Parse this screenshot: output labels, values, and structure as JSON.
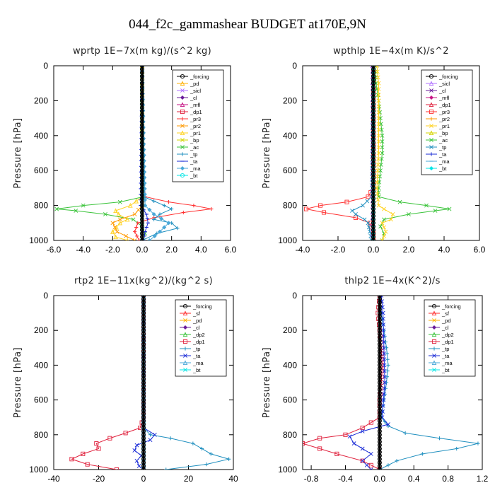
{
  "title": "044_f2c_gammashear  BUDGET at170E,9N",
  "colors": {
    "_forcing": "#000000",
    "_sicl": "#b070ff",
    "_cl": "#6a1b9a",
    "_mfl": "#c71585",
    "_dp1": "#e0203c",
    "_pr3": "#ff3030",
    "_pr2": "#ff9900",
    "_pr1": "#ffd21f",
    "_bp": "#d4d400",
    "_ac": "#39c339",
    "_tp": "#1f8fbf",
    "_ta": "#1a2bd6",
    "_ma": "#4aa8d8",
    "_bt": "#00e5e5",
    "_sf": "#ff2a2a",
    "_pd": "#ffb000",
    "_dp2": "#39c339"
  },
  "chart_data": [
    {
      "type": "line",
      "title": "wprtp   1E−7x(m kg)/(s^2 kg)",
      "ylabel": "Pressure [hPa]",
      "xlim": [
        -6,
        6
      ],
      "ylim": [
        1000,
        0
      ],
      "xticks": [
        "-6.0",
        "-4.0",
        "-2.0",
        "0.0",
        "2.0",
        "4.0",
        "6.0"
      ],
      "yticks": [
        "0",
        "200",
        "400",
        "600",
        "800",
        "1000"
      ],
      "legend": [
        "_forcing",
        "_pd",
        "_sicl",
        "_cl",
        "_mfl",
        "_dp1",
        "_pr3",
        "_pr2",
        "_pr1",
        "_bp",
        "_ac",
        "_tp",
        "_ta",
        "_ma",
        "_bt"
      ],
      "series": [
        {
          "name": "_ac",
          "p": [
            0,
            700,
            750,
            780,
            800,
            820,
            830,
            850,
            880,
            920,
            960,
            1000
          ],
          "x": [
            0,
            0,
            0.1,
            -1.5,
            -4.0,
            -5.8,
            -4.5,
            -2.5,
            -0.6,
            0.0,
            0.2,
            0.1
          ]
        },
        {
          "name": "_pr3",
          "p": [
            0,
            700,
            750,
            780,
            800,
            820,
            840,
            870,
            900,
            950,
            1000
          ],
          "x": [
            0,
            0,
            0.2,
            1.8,
            3.5,
            4.7,
            2.8,
            0.8,
            -0.3,
            -0.5,
            -0.2
          ]
        },
        {
          "name": "_pr1",
          "p": [
            0,
            750,
            800,
            830,
            850,
            880,
            900,
            950,
            980,
            1000
          ],
          "x": [
            0,
            0,
            -0.8,
            -1.8,
            -1.6,
            -1.0,
            -1.5,
            -2.0,
            -1.8,
            -1.0
          ]
        },
        {
          "name": "_pr2",
          "p": [
            0,
            800,
            850,
            880,
            900,
            950,
            1000
          ],
          "x": [
            0,
            0,
            -0.5,
            -1.5,
            -2.0,
            -1.7,
            -0.5
          ]
        },
        {
          "name": "_tp",
          "p": [
            0,
            750,
            800,
            820,
            850,
            880,
            900,
            930,
            960,
            1000
          ],
          "x": [
            0,
            0.1,
            1.5,
            2.0,
            1.2,
            0.8,
            2.0,
            2.4,
            1.0,
            0.0
          ]
        },
        {
          "name": "_ma",
          "p": [
            0,
            800,
            850,
            900,
            950,
            1000
          ],
          "x": [
            0,
            0.2,
            0.8,
            1.8,
            1.2,
            0.5
          ]
        },
        {
          "name": "_ta",
          "p": [
            0,
            800,
            850,
            900,
            950,
            1000
          ],
          "x": [
            0,
            -0.1,
            0.3,
            0.4,
            0.2,
            0.1
          ]
        },
        {
          "name": "_bt",
          "p": [
            0,
            1000
          ],
          "x": [
            0,
            0
          ]
        },
        {
          "name": "_forcing",
          "p": [
            0,
            1000
          ],
          "x": [
            0,
            0
          ]
        }
      ]
    },
    {
      "type": "line",
      "title": "wpthlp   1E−4x(m K)/s^2",
      "ylabel": "Pressure [hPa]",
      "xlim": [
        -4,
        6
      ],
      "ylim": [
        1000,
        0
      ],
      "xticks": [
        "-4.0",
        "-2.0",
        "0.0",
        "2.0",
        "4.0",
        "6.0"
      ],
      "yticks": [
        "0",
        "200",
        "400",
        "600",
        "800",
        "1000"
      ],
      "legend": [
        "_forcing",
        "_sicl",
        "_cl",
        "_mfl",
        "_dp1",
        "_pr3",
        "_pr2",
        "_pr1",
        "_bp",
        "_ac",
        "_tp",
        "_ta",
        "_ma",
        "_bt"
      ],
      "series": [
        {
          "name": "_ac",
          "p": [
            0,
            100,
            200,
            300,
            400,
            500,
            600,
            700,
            750,
            780,
            800,
            820,
            830,
            850,
            880,
            920,
            960,
            1000
          ],
          "x": [
            0.1,
            0.15,
            0.3,
            0.4,
            0.5,
            0.5,
            0.4,
            0.3,
            0.3,
            1.5,
            3.0,
            4.3,
            3.5,
            2.0,
            0.6,
            0.4,
            0.6,
            0.5
          ]
        },
        {
          "name": "_pr3",
          "p": [
            0,
            700,
            750,
            780,
            800,
            820,
            840,
            870,
            900,
            950,
            1000
          ],
          "x": [
            0,
            0,
            -0.3,
            -1.5,
            -3.0,
            -3.8,
            -2.8,
            -1.0,
            -0.2,
            0.0,
            0.0
          ]
        },
        {
          "name": "_pr1",
          "p": [
            0,
            100,
            300,
            500,
            700,
            800,
            820,
            850,
            880,
            900,
            950,
            1000
          ],
          "x": [
            0.2,
            0.3,
            0.3,
            0.3,
            0.2,
            0.3,
            0.6,
            1.1,
            1.0,
            0.5,
            0.7,
            0.5
          ]
        },
        {
          "name": "_tp",
          "p": [
            0,
            750,
            800,
            830,
            850,
            880,
            900,
            950,
            1000
          ],
          "x": [
            0,
            -0.1,
            -0.6,
            -1.2,
            -1.0,
            -0.5,
            -0.3,
            -0.2,
            -0.1
          ]
        },
        {
          "name": "_sicl",
          "p": [
            0,
            1000
          ],
          "x": [
            -0.05,
            -0.05
          ]
        },
        {
          "name": "_bt",
          "p": [
            0,
            1000
          ],
          "x": [
            0,
            0
          ]
        },
        {
          "name": "_forcing",
          "p": [
            0,
            1000
          ],
          "x": [
            0,
            0
          ]
        }
      ]
    },
    {
      "type": "line",
      "title": "rtp2   1E−11x(kg^2)/(kg^2 s)",
      "ylabel": "Pressure [hPa]",
      "xlim": [
        -40,
        40
      ],
      "ylim": [
        1000,
        0
      ],
      "xticks": [
        "-40",
        "-20",
        "0",
        "20",
        "40"
      ],
      "yticks": [
        "0",
        "200",
        "400",
        "600",
        "800",
        "1000"
      ],
      "legend": [
        "_forcing",
        "_sf",
        "_pd",
        "_cl",
        "_dp2",
        "_dp1",
        "_tp",
        "_ta",
        "_ma",
        "_bt"
      ],
      "series": [
        {
          "name": "_dp1",
          "p": [
            0,
            700,
            760,
            790,
            820,
            850,
            880,
            910,
            940,
            970,
            1000
          ],
          "x": [
            0,
            0,
            -1.5,
            -8.0,
            -15.0,
            -21.0,
            -20.0,
            -27.0,
            -32.0,
            -25.0,
            -12.0
          ]
        },
        {
          "name": "_tp",
          "p": [
            0,
            760,
            800,
            820,
            850,
            880,
            910,
            940,
            970,
            1000
          ],
          "x": [
            0,
            0,
            3.0,
            12.0,
            22.0,
            26.0,
            30.0,
            38.0,
            28.0,
            10.0
          ]
        },
        {
          "name": "_ta",
          "p": [
            0,
            760,
            800,
            830,
            860,
            890,
            920,
            950,
            980,
            1000
          ],
          "x": [
            0,
            0,
            5.0,
            3.0,
            -3.0,
            -4.0,
            -1.0,
            -3.0,
            -2.0,
            0.0
          ]
        },
        {
          "name": "_ma",
          "p": [
            0,
            1000
          ],
          "x": [
            0,
            0
          ]
        },
        {
          "name": "_forcing",
          "p": [
            0,
            1000
          ],
          "x": [
            0,
            0
          ]
        }
      ]
    },
    {
      "type": "line",
      "title": "thlp2   1E−4x(K^2)/s",
      "ylabel": "Pressure [hPa]",
      "xlim": [
        -0.9,
        1.2
      ],
      "ylim": [
        1000,
        0
      ],
      "xticks": [
        "-0.8",
        "-0.4",
        "0.0",
        "0.4",
        "0.8",
        "1.2"
      ],
      "yticks": [
        "0",
        "200",
        "400",
        "600",
        "800",
        "1000"
      ],
      "legend": [
        "_forcing",
        "_sf",
        "_pd",
        "_cl",
        "_dp2",
        "_dp1",
        "_tp",
        "_ta",
        "_ma",
        "_bt"
      ],
      "series": [
        {
          "name": "_dp1",
          "p": [
            0,
            100,
            200,
            300,
            400,
            500,
            600,
            700,
            760,
            800,
            820,
            850,
            880,
            910,
            950,
            1000
          ],
          "x": [
            0.0,
            -0.02,
            0.0,
            0.02,
            0.03,
            0.02,
            0.0,
            0.0,
            -0.2,
            -0.4,
            -0.7,
            -0.9,
            -0.7,
            -0.5,
            -0.2,
            0.0
          ]
        },
        {
          "name": "_tp",
          "p": [
            0,
            100,
            200,
            300,
            400,
            500,
            600,
            700,
            750,
            790,
            820,
            850,
            880,
            910,
            950,
            1000
          ],
          "x": [
            0.0,
            0.02,
            0.05,
            0.08,
            0.1,
            0.08,
            0.05,
            0.02,
            0.1,
            0.3,
            0.7,
            1.15,
            0.9,
            0.5,
            0.2,
            0.0
          ]
        },
        {
          "name": "_ta",
          "p": [
            0,
            100,
            300,
            500,
            700,
            740,
            780,
            810,
            850,
            880,
            910,
            950,
            1000
          ],
          "x": [
            0.02,
            0.04,
            0.05,
            0.06,
            0.03,
            0.1,
            -0.2,
            -0.35,
            -0.3,
            -0.2,
            -0.1,
            -0.2,
            -0.1
          ]
        },
        {
          "name": "_forcing",
          "p": [
            0,
            1000
          ],
          "x": [
            0,
            0
          ]
        }
      ]
    }
  ]
}
